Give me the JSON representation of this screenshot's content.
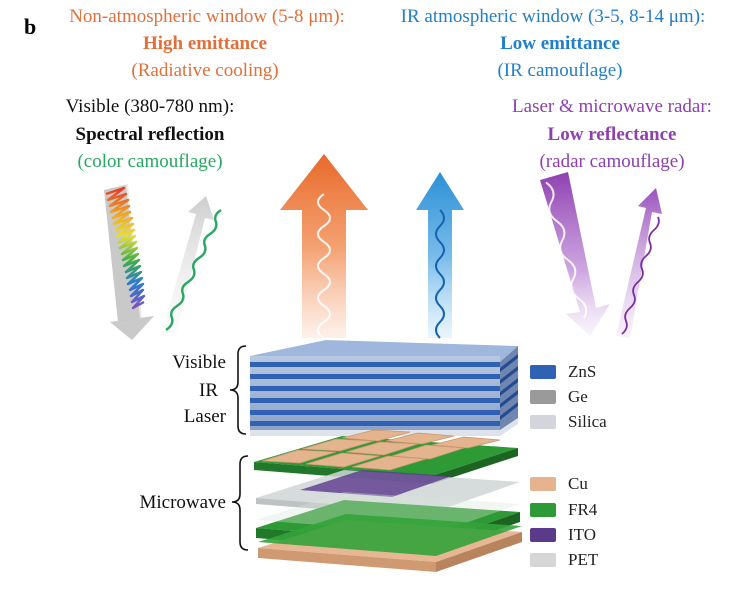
{
  "panel_letter": "b",
  "top_left": {
    "heading": "Non-atmospheric window (5-8 μm):",
    "emphasis": "High emittance",
    "note": "(Radiative cooling)"
  },
  "top_right": {
    "heading": "IR atmospheric window (3-5, 8-14 μm):",
    "emphasis": "Low emittance",
    "note": "(IR camouflage)"
  },
  "left": {
    "heading": "Visible (380-780 nm):",
    "emphasis": "Spectral reflection",
    "note": "(color camouflage)"
  },
  "right": {
    "heading": "Laser & microwave radar:",
    "emphasis": "Low reflectance",
    "note": "(radar camouflage)"
  },
  "brackets": {
    "upper": [
      "Visible",
      "IR",
      "Laser"
    ],
    "lower": "Microwave"
  },
  "legend_upper": [
    {
      "label": "ZnS",
      "color": "#2f62b4"
    },
    {
      "label": "Ge",
      "color": "#9a9a9a"
    },
    {
      "label": "Silica",
      "color": "#d4d4dc"
    }
  ],
  "legend_lower": [
    {
      "label": "Cu",
      "color": "#e5b38d"
    },
    {
      "label": "FR4",
      "color": "#2e9a35"
    },
    {
      "label": "ITO",
      "color": "#5b3a8c"
    },
    {
      "label": "PET",
      "color": "#d6d6d6"
    }
  ],
  "colors": {
    "orange": "#e2703a",
    "blue": "#1f7fc8",
    "purple": "#8e3fb0",
    "green": "#27a860",
    "black": "#111111"
  }
}
